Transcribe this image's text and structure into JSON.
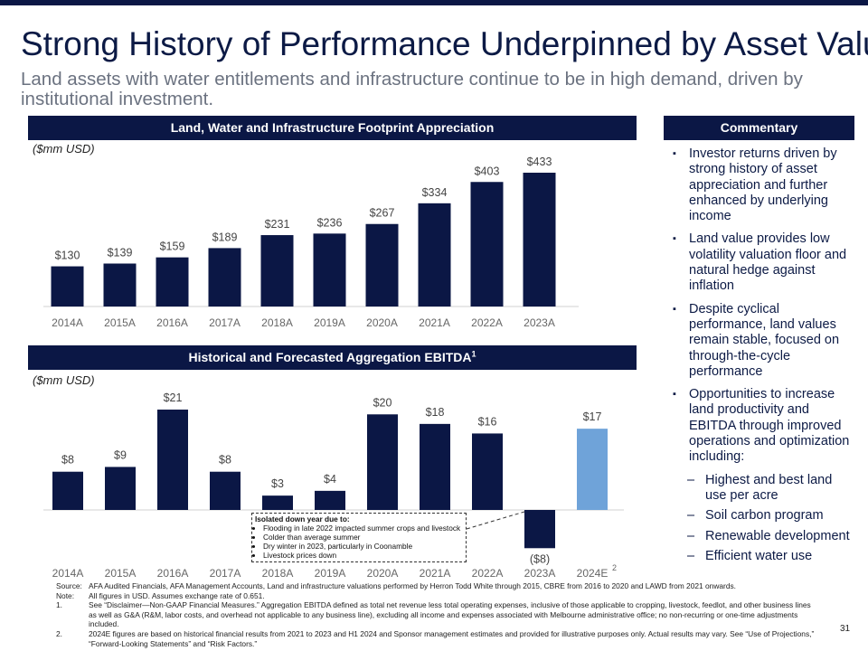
{
  "header": {
    "title": "Strong History of Performance Underpinned by Asset Value",
    "subtitle": "Land assets with water entitlements and infrastructure continue to be in high demand, driven by institutional investment."
  },
  "colors": {
    "navy": "#0b1745",
    "forecast_blue": "#6fa3d9",
    "grey_text": "#6b7280"
  },
  "panels": {
    "chart1_title": "Land, Water and Infrastructure Footprint Appreciation",
    "chart1_unit": "($mm USD)",
    "chart2_title": "Historical and Forecasted Aggregation EBITDA",
    "chart2_title_sup": "1",
    "chart2_unit": "($mm USD)",
    "commentary_title": "Commentary"
  },
  "chart_data": [
    {
      "type": "bar",
      "title": "Land, Water and Infrastructure Footprint Appreciation",
      "ylabel": "($mm USD)",
      "categories": [
        "2014A",
        "2015A",
        "2016A",
        "2017A",
        "2018A",
        "2019A",
        "2020A",
        "2021A",
        "2022A",
        "2023A"
      ],
      "values": [
        130,
        139,
        159,
        189,
        231,
        236,
        267,
        334,
        403,
        433
      ],
      "labels": [
        "$130",
        "$139",
        "$159",
        "$189",
        "$231",
        "$236",
        "$267",
        "$334",
        "$403",
        "$433"
      ],
      "ylim": [
        0,
        433
      ]
    },
    {
      "type": "bar",
      "title": "Historical and Forecasted Aggregation EBITDA",
      "ylabel": "($mm USD)",
      "categories": [
        "2014A",
        "2015A",
        "2016A",
        "2017A",
        "2018A",
        "2019A",
        "2020A",
        "2021A",
        "2022A",
        "2023A",
        "2024E"
      ],
      "values": [
        8,
        9,
        21,
        8,
        3,
        4,
        20,
        18,
        16,
        -8,
        17
      ],
      "labels": [
        "$8",
        "$9",
        "$21",
        "$8",
        "$3",
        "$4",
        "$20",
        "$18",
        "$16",
        "($8)",
        "$17"
      ],
      "forecast": [
        false,
        false,
        false,
        false,
        false,
        false,
        false,
        false,
        false,
        false,
        true
      ],
      "forecast_note_sup": "2",
      "ylim": [
        -8,
        21
      ]
    }
  ],
  "callout": {
    "heading": "Isolated down year due to:",
    "items": [
      "Flooding in late 2022 impacted summer crops and livestock",
      "Colder than average summer",
      "Dry winter in 2023, particularly in Coonamble",
      "Livestock prices down"
    ]
  },
  "commentary": {
    "bullets": [
      "Investor returns driven by strong history of asset appreciation and further enhanced by underlying income",
      "Land value provides low volatility valuation floor and natural hedge against inflation",
      "Despite cyclical performance, land values remain stable, focused on through-the-cycle performance",
      "Opportunities to increase land productivity and EBITDA through improved operations and optimization including:"
    ],
    "sub_bullets": [
      "Highest and best land use per acre",
      "Soil carbon program",
      "Renewable development",
      "Efficient water use"
    ]
  },
  "footnotes": [
    {
      "key": "Source:",
      "text": "AFA Audited Financials, AFA Management Accounts, Land and infrastructure valuations performed by Herron Todd White through 2015, CBRE from 2016 to 2020 and LAWD from 2021 onwards."
    },
    {
      "key": "Note:",
      "text": "All figures in USD. Assumes exchange rate of 0.651."
    },
    {
      "key": "1.",
      "text": "See “Disclaimer—Non-GAAP Financial Measures.” Aggregation EBITDA defined as total net revenue less total operating expenses, inclusive of those applicable to cropping, livestock, feedlot, and other business lines as well as G&A (R&M, labor costs, and overhead not applicable to any business line), excluding all income and expenses associated with Melbourne administrative office; no non-recurring or one-time adjustments included."
    },
    {
      "key": "2.",
      "text": "2024E figures are based on historical financial results from 2021 to 2023 and H1 2024 and Sponsor management estimates and provided for illustrative purposes only. Actual results may vary. See “Use of Projections,” “Forward-Looking Statements” and “Risk Factors.”"
    }
  ],
  "page_number": "31"
}
